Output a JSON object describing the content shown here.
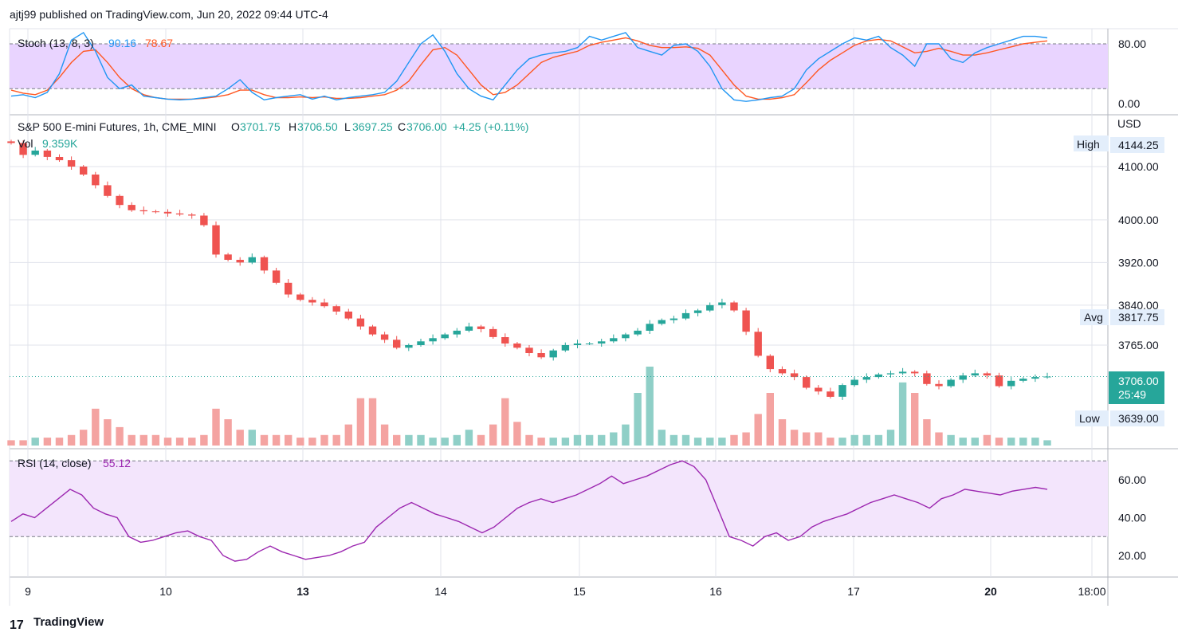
{
  "header": {
    "publisher": "ajtj99 published on TradingView.com, Jun 20, 2022 09:44 UTC-4"
  },
  "footer": {
    "logo_mark": "17",
    "brand": "TradingView"
  },
  "colors": {
    "up": "#26a69a",
    "down": "#ef5350",
    "vol_up": "#8fcfc7",
    "vol_down": "#f4a3a1",
    "stoch_k": "#2196f3",
    "stoch_d": "#ff5722",
    "stoch_band": "#e9d4ff",
    "rsi_line": "#9c27b0",
    "rsi_band": "#f3e5fc",
    "grid": "#e0e3eb",
    "text": "#131722"
  },
  "chart_data": {
    "type": "candlestick",
    "title": "S&P 500 E-mini Futures, 1h, CME_MINI",
    "ohlc": {
      "o_label": "O",
      "o": "3701.75",
      "h_label": "H",
      "h": "3706.50",
      "l_label": "L",
      "l": "3697.25",
      "c_label": "C",
      "c": "3706.00",
      "change": "+4.25 (+0.11%)"
    },
    "volume": {
      "label": "Vol",
      "value": "9.359K"
    },
    "currency": "USD",
    "price_axis_ticks": [
      "4100.00",
      "4000.00",
      "3920.00",
      "3840.00",
      "3765.00"
    ],
    "labels": {
      "high": {
        "tag": "High",
        "value": "4144.25"
      },
      "avg": {
        "tag": "Avg",
        "value": "3817.75"
      },
      "last": {
        "value": "3706.00",
        "countdown": "25:49"
      },
      "low": {
        "tag": "Low",
        "value": "3639.00"
      }
    },
    "x_axis_labels": [
      "9",
      "10",
      "13",
      "14",
      "15",
      "16",
      "17",
      "20",
      "18:00"
    ],
    "x_axis_bold": [
      "13",
      "20"
    ],
    "price_anchors": [
      [
        4144.25,
        4122,
        4130,
        4118,
        4112,
        4100,
        4085,
        4065,
        4045,
        4028,
        4018
      ],
      [
        4016,
        4015,
        4012,
        4010,
        4008,
        3990,
        3935,
        3925,
        3920,
        3930,
        3905
      ],
      [
        3882,
        3860,
        3850,
        3845,
        3838,
        3828,
        3815,
        3800,
        3785,
        3775,
        3760
      ],
      [
        3765,
        3772,
        3778,
        3785,
        3792,
        3800,
        3795,
        3780,
        3768,
        3760,
        3750
      ],
      [
        3742,
        3755,
        3765,
        3768,
        3768,
        3772,
        3778,
        3785,
        3792,
        3805,
        3812
      ],
      [
        3815,
        3825,
        3830,
        3840,
        3845,
        3830,
        3790,
        3745,
        3720,
        3712,
        3705
      ],
      [
        3685,
        3678,
        3668,
        3690,
        3700,
        3705,
        3710,
        3712,
        3715,
        3712,
        3692
      ],
      [
        3688,
        3700,
        3708,
        3712,
        3708,
        3688,
        3698,
        3702,
        3705,
        3706
      ]
    ],
    "volume_anchors": [
      [
        2,
        2,
        3,
        3,
        3,
        4,
        6,
        14,
        10,
        7,
        4
      ],
      [
        4,
        4,
        3,
        3,
        3,
        4,
        14,
        10,
        6,
        6,
        4
      ],
      [
        4,
        4,
        3,
        3,
        4,
        4,
        8,
        18,
        18,
        8,
        4
      ],
      [
        4,
        4,
        3,
        3,
        4,
        6,
        4,
        8,
        18,
        9,
        4
      ],
      [
        3,
        3,
        3,
        4,
        4,
        4,
        5,
        8,
        20,
        30,
        6
      ],
      [
        4,
        4,
        3,
        3,
        3,
        4,
        5,
        12,
        20,
        10,
        6
      ],
      [
        5,
        5,
        3,
        3,
        4,
        4,
        4,
        6,
        24,
        20,
        10
      ],
      [
        5,
        4,
        3,
        3,
        4,
        3,
        3,
        3,
        3,
        2
      ]
    ],
    "stoch": {
      "label": "Stoch (13, 8, 3)",
      "k": "90.16",
      "d": "78.67",
      "bands": [
        80,
        20
      ],
      "ticks": [
        "80.00",
        "0.00"
      ],
      "k_series": [
        10,
        12,
        8,
        15,
        40,
        85,
        95,
        70,
        35,
        20,
        25,
        10,
        8,
        6,
        5,
        6,
        8,
        10,
        20,
        32,
        15,
        5,
        8,
        10,
        12,
        6,
        10,
        5,
        8,
        10,
        12,
        15,
        30,
        55,
        80,
        92,
        70,
        40,
        20,
        10,
        5,
        25,
        45,
        60,
        65,
        68,
        70,
        75,
        90,
        85,
        90,
        95,
        75,
        70,
        65,
        78,
        80,
        70,
        50,
        20,
        5,
        3,
        5,
        8,
        10,
        20,
        45,
        60,
        70,
        80,
        88,
        85,
        90,
        75,
        65,
        50,
        80,
        80,
        60,
        55,
        68,
        75,
        80,
        85,
        90,
        90,
        88
      ],
      "d_series": [
        18,
        14,
        12,
        18,
        35,
        55,
        70,
        72,
        55,
        35,
        20,
        12,
        8,
        6,
        6,
        6,
        7,
        9,
        12,
        18,
        18,
        12,
        8,
        8,
        9,
        8,
        9,
        7,
        7,
        8,
        10,
        12,
        18,
        30,
        52,
        72,
        75,
        65,
        45,
        25,
        12,
        15,
        25,
        40,
        55,
        62,
        66,
        70,
        78,
        82,
        85,
        88,
        84,
        78,
        75,
        75,
        76,
        74,
        65,
        45,
        25,
        10,
        6,
        6,
        8,
        12,
        28,
        45,
        58,
        68,
        78,
        84,
        86,
        84,
        76,
        68,
        70,
        74,
        70,
        65,
        65,
        68,
        72,
        76,
        80,
        82,
        84
      ]
    },
    "rsi": {
      "label": "RSI (14, close)",
      "value": "55.12",
      "bands": [
        70,
        30
      ],
      "ticks": [
        "60.00",
        "40.00",
        "20.00"
      ],
      "series": [
        38,
        42,
        40,
        45,
        50,
        55,
        52,
        45,
        42,
        40,
        30,
        27,
        28,
        30,
        32,
        33,
        30,
        28,
        20,
        17,
        18,
        22,
        25,
        22,
        20,
        18,
        19,
        20,
        22,
        25,
        27,
        35,
        40,
        45,
        48,
        45,
        42,
        40,
        38,
        35,
        32,
        35,
        40,
        45,
        48,
        50,
        48,
        50,
        52,
        55,
        58,
        62,
        58,
        60,
        62,
        65,
        68,
        70,
        67,
        60,
        45,
        30,
        28,
        25,
        30,
        32,
        28,
        30,
        35,
        38,
        40,
        42,
        45,
        48,
        50,
        52,
        50,
        48,
        45,
        50,
        52,
        55,
        54,
        53,
        52,
        54,
        55,
        56,
        55
      ]
    }
  }
}
